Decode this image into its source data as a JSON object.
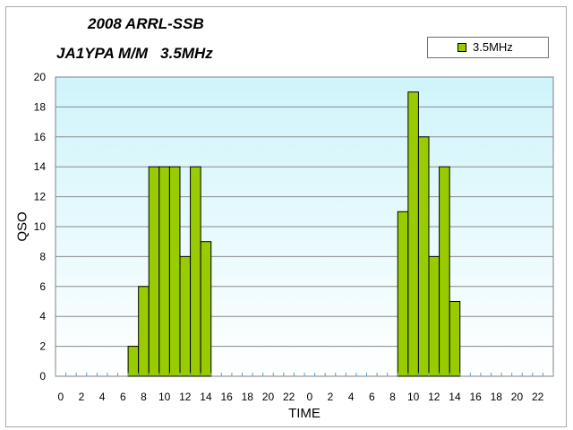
{
  "chart_data": {
    "type": "bar",
    "title_line1": "2008 ARRL-SSB",
    "title_line2": "JA1YPA M/M   3.5MHz",
    "xlabel": "TIME",
    "ylabel": "QSO",
    "ylim": [
      0,
      20
    ],
    "y_ticks": [
      "0",
      "2",
      "4",
      "6",
      "8",
      "10",
      "12",
      "14",
      "16",
      "18",
      "20"
    ],
    "x_tick_labels": [
      "0",
      "2",
      "4",
      "6",
      "8",
      "10",
      "12",
      "14",
      "16",
      "18",
      "20",
      "22",
      "0",
      "2",
      "4",
      "6",
      "8",
      "10",
      "12",
      "14",
      "16",
      "18",
      "20",
      "22"
    ],
    "categories": [
      "0",
      "1",
      "2",
      "3",
      "4",
      "5",
      "6",
      "7",
      "8",
      "9",
      "10",
      "11",
      "12",
      "13",
      "14",
      "15",
      "16",
      "17",
      "18",
      "19",
      "20",
      "21",
      "22",
      "23",
      "0",
      "1",
      "2",
      "3",
      "4",
      "5",
      "6",
      "7",
      "8",
      "9",
      "10",
      "11",
      "12",
      "13",
      "14",
      "15",
      "16",
      "17",
      "18",
      "19",
      "20",
      "21",
      "22",
      "23"
    ],
    "series": [
      {
        "name": "3.5MHz",
        "color": "#99cc00",
        "values": [
          0,
          0,
          0,
          0,
          0,
          0,
          0,
          2,
          6,
          14,
          14,
          14,
          8,
          14,
          9,
          0,
          0,
          0,
          0,
          0,
          0,
          0,
          0,
          0,
          0,
          0,
          0,
          0,
          0,
          0,
          0,
          0,
          0,
          11,
          19,
          16,
          8,
          14,
          5,
          0,
          0,
          0,
          0,
          0,
          0,
          0,
          0,
          0
        ]
      }
    ],
    "grid": true,
    "legend_position": "top-right",
    "plot_background": "gradient light cyan"
  }
}
